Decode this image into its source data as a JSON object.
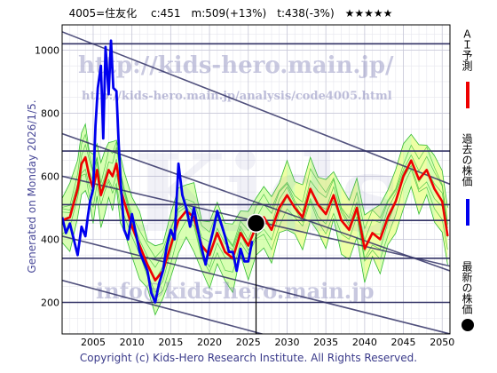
{
  "header": {
    "title": "4005=住友化　 c:451　m:509(+13%)　t:438(-3%)　★★★★★"
  },
  "side_text": "Generated on Monday 2026/1/5.",
  "footer": "Copyright (c) Kids-Hero Research Institute. All Rights Reserved.",
  "watermarks": {
    "top": "http://kids-hero.main.jp/",
    "mid": "http://kids-hero.main.jp/analysis/code4005.html",
    "bottom": "info@kids-hero.main.jp",
    "logo": "Kids"
  },
  "legend": {
    "ai": "ＡＩ予測",
    "past": "過去の株価",
    "latest": "最新の株価"
  },
  "colors": {
    "ai": "#ee0000",
    "past": "#0000ee",
    "latest": "#000000",
    "band": "#ccff99",
    "band_yellow": "#ffff99",
    "band_line": "#33bb33",
    "hline": "#333366",
    "trend": "#333366"
  },
  "chart_data": {
    "type": "line",
    "xlim": [
      2001,
      2051
    ],
    "ylim": [
      100,
      1080
    ],
    "xticks": [
      2005,
      2010,
      2015,
      2020,
      2025,
      2030,
      2035,
      2040,
      2045,
      2050
    ],
    "yticks": [
      200,
      400,
      600,
      800,
      1000
    ],
    "grid": true,
    "hlines": [
      1020,
      680,
      510,
      460,
      340,
      200
    ],
    "trendlines": [
      {
        "x": [
          2001,
          2051
        ],
        "y": [
          1058,
          575
        ]
      },
      {
        "x": [
          2001,
          2051
        ],
        "y": [
          735,
          300
        ]
      },
      {
        "x": [
          2001,
          2051
        ],
        "y": [
          600,
          315
        ]
      },
      {
        "x": [
          2001,
          2051
        ],
        "y": [
          410,
          100
        ]
      },
      {
        "x": [
          2001,
          2051
        ],
        "y": [
          270,
          -60
        ]
      }
    ],
    "latest": {
      "x": 2026.0,
      "y": 451
    },
    "series": [
      {
        "name": "過去の株価",
        "x": [
          2001.0,
          2001.5,
          2002.0,
          2002.5,
          2003.0,
          2003.5,
          2004.0,
          2004.3,
          2004.6,
          2005.0,
          2005.3,
          2005.6,
          2006.0,
          2006.3,
          2006.6,
          2007.0,
          2007.3,
          2007.6,
          2008.0,
          2008.3,
          2008.6,
          2009.0,
          2009.5,
          2010.0,
          2010.5,
          2011.0,
          2011.5,
          2012.0,
          2012.5,
          2013.0,
          2013.5,
          2014.0,
          2014.5,
          2015.0,
          2015.5,
          2016.0,
          2016.5,
          2017.0,
          2017.5,
          2018.0,
          2018.5,
          2019.0,
          2019.5,
          2020.0,
          2020.5,
          2021.0,
          2021.5,
          2022.0,
          2022.5,
          2023.0,
          2023.5,
          2024.0,
          2024.5,
          2025.0,
          2025.5
        ],
        "y": [
          470,
          420,
          450,
          400,
          350,
          440,
          410,
          470,
          520,
          560,
          760,
          880,
          950,
          720,
          1010,
          860,
          1030,
          880,
          870,
          700,
          560,
          430,
          400,
          480,
          420,
          360,
          330,
          300,
          230,
          200,
          260,
          300,
          380,
          430,
          400,
          640,
          540,
          500,
          440,
          500,
          430,
          370,
          320,
          380,
          430,
          490,
          450,
          410,
          360,
          360,
          300,
          370,
          330,
          330,
          395
        ]
      },
      {
        "name": "ＡＩ予測",
        "x": [
          2001.0,
          2002.0,
          2003.0,
          2003.5,
          2004.0,
          2004.5,
          2005.0,
          2005.5,
          2006.0,
          2006.5,
          2007.0,
          2007.5,
          2008.0,
          2008.5,
          2009.0,
          2010.0,
          2011.0,
          2012.0,
          2013.0,
          2014.0,
          2015.0,
          2016.0,
          2017.0,
          2018.0,
          2019.0,
          2020.0,
          2021.0,
          2022.0,
          2023.0,
          2024.0,
          2025.0,
          2026.0,
          2027.0,
          2028.0,
          2029.0,
          2030.0,
          2031.0,
          2032.0,
          2033.0,
          2034.0,
          2035.0,
          2036.0,
          2037.0,
          2038.0,
          2039.0,
          2040.0,
          2041.0,
          2042.0,
          2043.0,
          2044.0,
          2045.0,
          2046.0,
          2047.0,
          2048.0,
          2049.0,
          2050.0,
          2050.7
        ],
        "y": [
          460,
          470,
          560,
          640,
          660,
          600,
          560,
          620,
          540,
          580,
          620,
          600,
          640,
          560,
          520,
          440,
          380,
          320,
          270,
          300,
          380,
          460,
          490,
          470,
          380,
          350,
          420,
          360,
          340,
          420,
          380,
          440,
          470,
          430,
          500,
          540,
          500,
          470,
          560,
          510,
          480,
          540,
          460,
          430,
          500,
          370,
          420,
          400,
          470,
          520,
          600,
          650,
          590,
          620,
          560,
          520,
          410
        ]
      }
    ]
  }
}
